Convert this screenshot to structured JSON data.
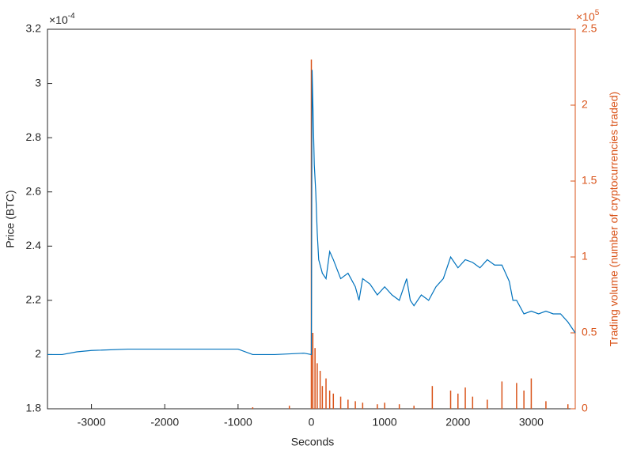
{
  "chart_data": {
    "type": "line",
    "xlabel": "Seconds",
    "ylabel": "Price (BTC)",
    "y2label": "Trading volume (number of cryptocurrencies traded)",
    "y_multiplier": {
      "base": "×10",
      "exponent": "-4"
    },
    "y2_multiplier": {
      "base": "×10",
      "exponent": "5"
    },
    "xlim": [
      -3600,
      3600
    ],
    "xticks": [
      -3000,
      -2000,
      -1000,
      0,
      1000,
      2000,
      3000
    ],
    "ylim": [
      1.8,
      3.2
    ],
    "yticks": [
      1.8,
      2,
      2.2,
      2.4,
      2.6,
      2.8,
      3,
      3.2
    ],
    "y2lim": [
      0,
      2.5
    ],
    "y2ticks": [
      0,
      0.5,
      1,
      1.5,
      2,
      2.5
    ],
    "y2color": "#D95319",
    "series": [
      {
        "type": "line",
        "color": "#0072BD",
        "x": [
          -3600,
          -3400,
          -3200,
          -3000,
          -2500,
          -2000,
          -1500,
          -1000,
          -800,
          -500,
          -100,
          0,
          10,
          40,
          60,
          80,
          100,
          150,
          200,
          250,
          300,
          400,
          500,
          600,
          650,
          700,
          800,
          900,
          1000,
          1100,
          1200,
          1300,
          1350,
          1400,
          1500,
          1600,
          1700,
          1800,
          1900,
          2000,
          2100,
          2200,
          2300,
          2400,
          2500,
          2600,
          2700,
          2750,
          2800,
          2900,
          3000,
          3100,
          3200,
          3300,
          3400,
          3500,
          3600
        ],
        "values": [
          2.0,
          2.0,
          2.01,
          2.015,
          2.02,
          2.02,
          2.02,
          2.02,
          2.0,
          2.0,
          2.005,
          2.0,
          3.05,
          2.7,
          2.6,
          2.45,
          2.35,
          2.3,
          2.28,
          2.38,
          2.35,
          2.28,
          2.3,
          2.25,
          2.2,
          2.28,
          2.26,
          2.22,
          2.25,
          2.22,
          2.2,
          2.28,
          2.2,
          2.18,
          2.22,
          2.2,
          2.25,
          2.28,
          2.36,
          2.32,
          2.35,
          2.34,
          2.32,
          2.35,
          2.33,
          2.33,
          2.27,
          2.2,
          2.2,
          2.15,
          2.16,
          2.15,
          2.16,
          2.15,
          2.15,
          2.12,
          2.08
        ]
      },
      {
        "type": "bar",
        "axis": "y2",
        "color": "#D95319",
        "x": [
          -800,
          -300,
          0,
          20,
          50,
          80,
          120,
          150,
          200,
          250,
          300,
          400,
          500,
          600,
          700,
          900,
          1000,
          1200,
          1400,
          1650,
          1900,
          2000,
          2100,
          2200,
          2400,
          2600,
          2800,
          2900,
          3000,
          3200,
          3500
        ],
        "values": [
          0.01,
          0.02,
          2.3,
          0.5,
          0.4,
          0.3,
          0.25,
          0.15,
          0.2,
          0.12,
          0.1,
          0.08,
          0.06,
          0.05,
          0.04,
          0.03,
          0.04,
          0.03,
          0.02,
          0.15,
          0.12,
          0.1,
          0.14,
          0.08,
          0.06,
          0.18,
          0.17,
          0.12,
          0.2,
          0.05,
          0.03
        ]
      }
    ]
  }
}
